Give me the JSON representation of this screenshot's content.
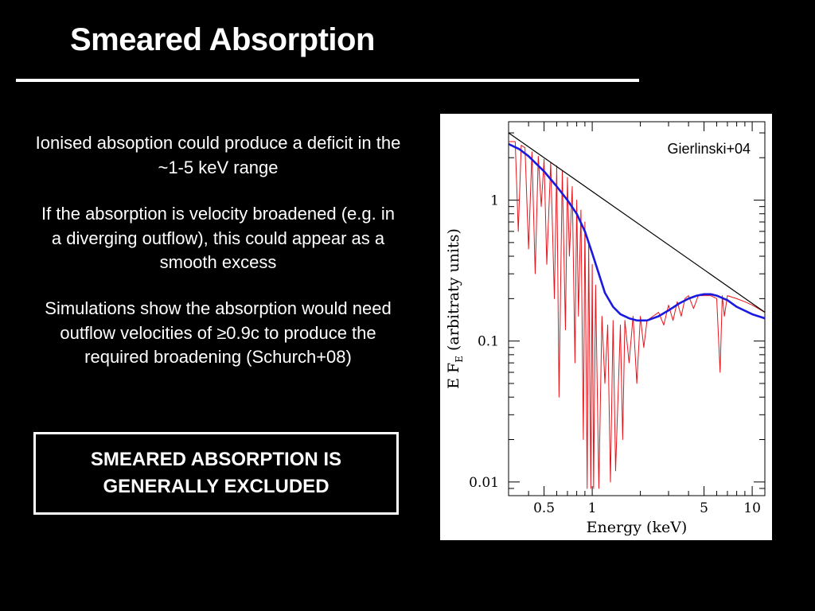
{
  "slide": {
    "title": "Smeared Absorption",
    "paragraphs": [
      "Ionised absoption could produce a deficit in the ~1-5 keV range",
      "If the absorption is velocity broadened (e.g. in a diverging outflow), this could appear as a smooth excess",
      "Simulations show the absorption would need outflow velocities of ≥0.9c to produce the required broadening (Schurch+08)"
    ],
    "conclusion": "SMEARED ABSORPTION IS GENERALLY EXCLUDED"
  },
  "chart_data": {
    "type": "line",
    "annotation": "Gierlinski+04",
    "xlabel": "Energy (keV)",
    "ylabel_main": "E F",
    "ylabel_sub": "E",
    "ylabel_rest": " (arbitraty units)",
    "xscale": "log",
    "yscale": "log",
    "xlim": [
      0.3,
      12
    ],
    "ylim": [
      0.008,
      3.6
    ],
    "x_ticks": [
      0.5,
      1,
      5,
      10
    ],
    "x_tick_labels": [
      "0.5",
      "1",
      "5",
      "10"
    ],
    "y_ticks": [
      0.01,
      0.1,
      1
    ],
    "y_tick_labels": [
      "0.01",
      "0.1",
      "1"
    ],
    "colors": {
      "powerlaw": "#000000",
      "smeared": "#1a1adf",
      "absorbed": "#e8141c"
    },
    "series": [
      {
        "key": "powerlaw",
        "x": [
          0.3,
          12
        ],
        "y": [
          3.0,
          0.16
        ]
      },
      {
        "key": "smeared",
        "x": [
          0.3,
          0.35,
          0.4,
          0.5,
          0.6,
          0.7,
          0.8,
          0.9,
          1.0,
          1.1,
          1.2,
          1.35,
          1.5,
          1.7,
          1.9,
          2.2,
          2.6,
          3.0,
          3.5,
          4.0,
          4.5,
          5.0,
          5.5,
          6.0,
          7.0,
          8.0,
          10.0,
          12.0
        ],
        "y": [
          2.5,
          2.3,
          2.05,
          1.6,
          1.25,
          1.0,
          0.8,
          0.6,
          0.42,
          0.3,
          0.22,
          0.175,
          0.155,
          0.145,
          0.14,
          0.14,
          0.15,
          0.165,
          0.185,
          0.2,
          0.21,
          0.215,
          0.215,
          0.21,
          0.195,
          0.175,
          0.155,
          0.145
        ]
      },
      {
        "key": "absorbed",
        "x": [
          0.3,
          0.33,
          0.345,
          0.36,
          0.38,
          0.4,
          0.42,
          0.44,
          0.46,
          0.48,
          0.5,
          0.52,
          0.55,
          0.58,
          0.6,
          0.62,
          0.65,
          0.68,
          0.7,
          0.72,
          0.75,
          0.78,
          0.8,
          0.82,
          0.85,
          0.88,
          0.9,
          0.93,
          0.95,
          0.98,
          1.0,
          1.02,
          1.05,
          1.1,
          1.15,
          1.2,
          1.25,
          1.3,
          1.35,
          1.4,
          1.5,
          1.55,
          1.6,
          1.7,
          1.8,
          1.9,
          2.0,
          2.1,
          2.2,
          2.4,
          2.6,
          2.8,
          3.0,
          3.2,
          3.4,
          3.6,
          3.8,
          4.0,
          4.3,
          4.6,
          5.0,
          5.5,
          6.0,
          6.3,
          6.5,
          6.7,
          7.0,
          8.0,
          9.0,
          10.0,
          12.0
        ],
        "y": [
          2.6,
          2.6,
          0.6,
          2.45,
          2.35,
          0.45,
          2.2,
          0.3,
          2.05,
          0.9,
          1.95,
          0.35,
          1.85,
          0.2,
          1.75,
          0.04,
          1.6,
          0.12,
          1.45,
          0.4,
          1.25,
          0.07,
          1.0,
          0.15,
          0.85,
          0.02,
          0.7,
          0.009,
          0.5,
          0.009,
          0.35,
          0.009,
          0.25,
          0.009,
          0.15,
          0.05,
          0.13,
          0.01,
          0.14,
          0.012,
          0.13,
          0.02,
          0.14,
          0.07,
          0.15,
          0.05,
          0.15,
          0.09,
          0.14,
          0.15,
          0.16,
          0.13,
          0.18,
          0.14,
          0.19,
          0.15,
          0.2,
          0.21,
          0.17,
          0.21,
          0.21,
          0.21,
          0.2,
          0.06,
          0.21,
          0.15,
          0.21,
          0.2,
          0.19,
          0.18,
          0.16
        ]
      }
    ]
  }
}
